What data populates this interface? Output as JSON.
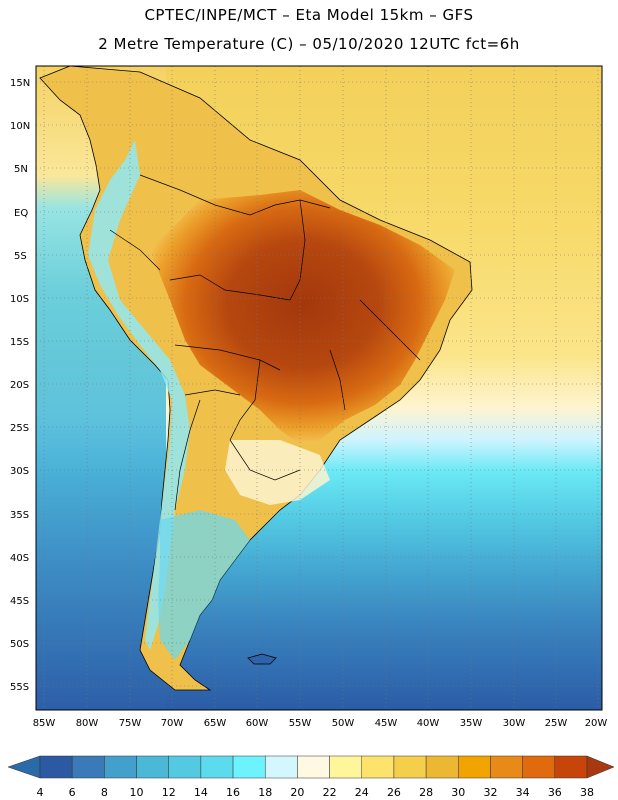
{
  "header": {
    "line1": "CPTEC/INPE/MCT –  Eta Model 15km – GFS",
    "line2": "2 Metre Temperature (C) – 05/10/2020 12UTC fct=6h"
  },
  "map": {
    "region": "South America",
    "lat_labels": [
      "15N",
      "10N",
      "5N",
      "EQ",
      "5S",
      "10S",
      "15S",
      "20S",
      "25S",
      "30S",
      "35S",
      "40S",
      "45S",
      "50S",
      "55S"
    ],
    "lon_labels": [
      "85W",
      "80W",
      "75W",
      "70W",
      "65W",
      "60W",
      "55W",
      "50W",
      "45W",
      "40W",
      "35W",
      "30W",
      "25W",
      "20W"
    ],
    "ocean_color": "#f5d65a",
    "land_hot_color": "#a8380f",
    "south_cold_color": "#2a5ea8"
  },
  "colorbar": {
    "values": [
      "4",
      "6",
      "8",
      "10",
      "12",
      "14",
      "16",
      "18",
      "20",
      "22",
      "24",
      "26",
      "28",
      "30",
      "32",
      "34",
      "36",
      "38"
    ],
    "colors": [
      "#2b5aa3",
      "#3a7ab8",
      "#43a0cc",
      "#4cb8d8",
      "#54c9e2",
      "#5ddbee",
      "#6cf3ff",
      "#d4f7ff",
      "#fff8e2",
      "#fff59a",
      "#fde36b",
      "#f5cf4c",
      "#ecb834",
      "#f1a300",
      "#e88a17",
      "#e06a0d",
      "#c7450b"
    ],
    "under_color": "#2a6aa8",
    "over_color": "#a8380f"
  }
}
